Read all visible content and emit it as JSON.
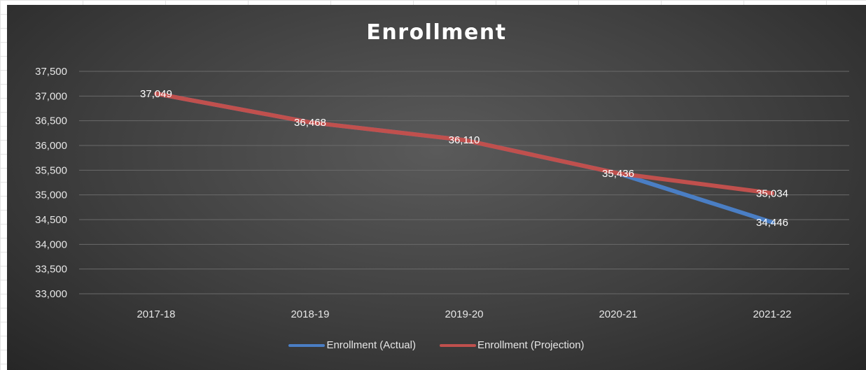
{
  "chart_data": {
    "type": "line",
    "title": "Enrollment",
    "categories": [
      "2017-18",
      "2018-19",
      "2019-20",
      "2020-21",
      "2021-22"
    ],
    "ylim": [
      33000,
      37500
    ],
    "yticks": [
      33000,
      33500,
      34000,
      34500,
      35000,
      35500,
      36000,
      36500,
      37000,
      37500
    ],
    "ytick_labels": [
      "33,000",
      "33,500",
      "34,000",
      "34,500",
      "35,000",
      "35,500",
      "36,000",
      "36,500",
      "37,000",
      "37,500"
    ],
    "grid": true,
    "legend_position": "bottom",
    "series": [
      {
        "name": "Enrollment (Actual)",
        "color": "#4a7ec4",
        "values": [
          37049,
          36468,
          36110,
          35436,
          34446
        ]
      },
      {
        "name": "Enrollment (Projection)",
        "color": "#c0504d",
        "values": [
          37049,
          36468,
          36110,
          35436,
          35034
        ]
      }
    ],
    "data_labels": [
      {
        "category": "2017-18",
        "text": "37,049",
        "value": 37049
      },
      {
        "category": "2018-19",
        "text": "36,468",
        "value": 36468
      },
      {
        "category": "2019-20",
        "text": "36,110",
        "value": 36110
      },
      {
        "category": "2020-21",
        "text": "35,436",
        "value": 35436
      },
      {
        "category": "2021-22",
        "text": "35,034",
        "value": 35034
      },
      {
        "category": "2021-22",
        "text": "34,446",
        "value": 34446
      }
    ]
  }
}
